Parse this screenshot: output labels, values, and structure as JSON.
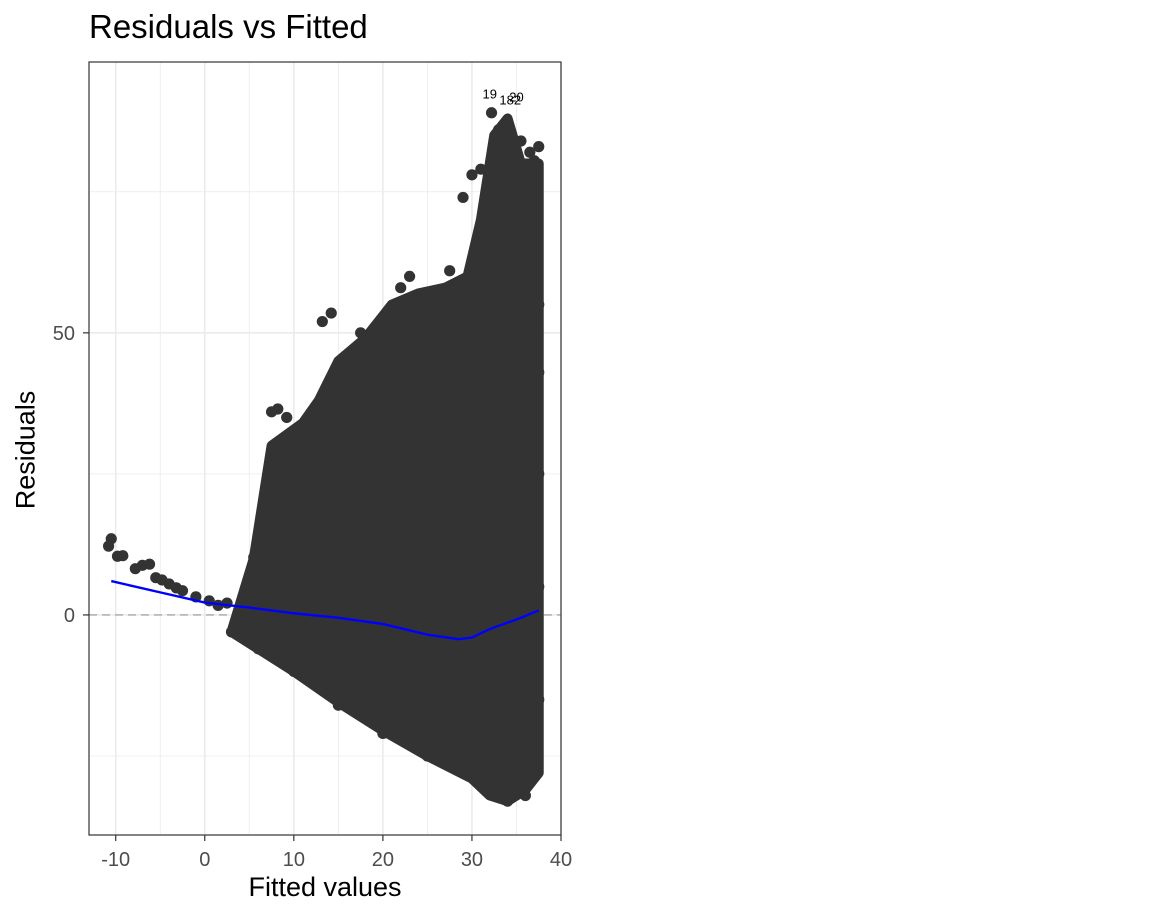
{
  "chart_data": {
    "type": "scatter",
    "title": "Residuals vs Fitted",
    "xlabel": "Fitted values",
    "ylabel": "Residuals",
    "xlim": [
      -13,
      40
    ],
    "ylim": [
      -39,
      98
    ],
    "x_ticks": [
      -10,
      0,
      10,
      20,
      30,
      40
    ],
    "x_tick_labels": [
      "-10",
      "0",
      "10",
      "20",
      "30",
      "40"
    ],
    "y_ticks": [
      0,
      50
    ],
    "y_tick_labels": [
      "0",
      "50"
    ],
    "grid": true,
    "reference_line": {
      "y": 0,
      "style": "dashed"
    },
    "colors": {
      "points": "#333333",
      "smooth": "#0000ff",
      "grid": "#ebebeb",
      "reference": "#999999"
    },
    "points_note": "dense cloud: residuals fan out from a narrow band at low fitted values to about -33..+92 near fitted 33-37",
    "sample_points": [
      {
        "x": -10.5,
        "y": 13.5
      },
      {
        "x": -10.8,
        "y": 12.2
      },
      {
        "x": -9.8,
        "y": 10.4
      },
      {
        "x": -9.2,
        "y": 10.5
      },
      {
        "x": -7.8,
        "y": 8.2
      },
      {
        "x": -7.0,
        "y": 8.8
      },
      {
        "x": -6.2,
        "y": 9.0
      },
      {
        "x": -5.5,
        "y": 6.6
      },
      {
        "x": -4.8,
        "y": 6.2
      },
      {
        "x": -4.0,
        "y": 5.5
      },
      {
        "x": -3.2,
        "y": 4.8
      },
      {
        "x": -2.5,
        "y": 4.3
      },
      {
        "x": -1.0,
        "y": 3.2
      },
      {
        "x": 0.5,
        "y": 2.5
      },
      {
        "x": 1.5,
        "y": 1.7
      },
      {
        "x": 2.5,
        "y": 2.1
      },
      {
        "x": 5.5,
        "y": 10.2
      },
      {
        "x": 7.0,
        "y": 9.5
      },
      {
        "x": 7.5,
        "y": 36.0
      },
      {
        "x": 8.2,
        "y": 36.5
      },
      {
        "x": 9.2,
        "y": 35.0
      },
      {
        "x": 10.5,
        "y": 20.3
      },
      {
        "x": 13.2,
        "y": 52.0
      },
      {
        "x": 14.2,
        "y": 53.5
      },
      {
        "x": 17.5,
        "y": 50.0
      },
      {
        "x": 22.0,
        "y": 58.0
      },
      {
        "x": 23.0,
        "y": 60.0
      },
      {
        "x": 27.5,
        "y": 61.0
      },
      {
        "x": 29.0,
        "y": 74.0
      },
      {
        "x": 30.0,
        "y": 78.0
      },
      {
        "x": 31.0,
        "y": 79.0
      },
      {
        "x": 32.2,
        "y": 89.0
      },
      {
        "x": 33.0,
        "y": 86.0
      },
      {
        "x": 33.5,
        "y": 81.0
      },
      {
        "x": 34.5,
        "y": 83.0
      },
      {
        "x": 35.5,
        "y": 84.0
      },
      {
        "x": 36.5,
        "y": 82.0
      },
      {
        "x": 37.0,
        "y": 80.5
      },
      {
        "x": 37.5,
        "y": 83.0
      },
      {
        "x": 36.0,
        "y": 70.0
      },
      {
        "x": 37.0,
        "y": 70.0
      },
      {
        "x": 36.5,
        "y": 62.0
      },
      {
        "x": 37.5,
        "y": 55.0
      },
      {
        "x": 37.5,
        "y": 43.0
      },
      {
        "x": 37.5,
        "y": 25.0
      },
      {
        "x": 37.5,
        "y": 5.0
      },
      {
        "x": 37.5,
        "y": -15.0
      },
      {
        "x": 37.0,
        "y": -28.0
      },
      {
        "x": 36.0,
        "y": -32.0
      },
      {
        "x": 34.0,
        "y": -33.0
      },
      {
        "x": 33.0,
        "y": -31.0
      },
      {
        "x": 30.0,
        "y": -28.0
      },
      {
        "x": 25.0,
        "y": -25.0
      },
      {
        "x": 20.0,
        "y": -21.0
      },
      {
        "x": 15.0,
        "y": -16.0
      },
      {
        "x": 10.0,
        "y": -10.0
      },
      {
        "x": 6.0,
        "y": -6.0
      },
      {
        "x": 3.0,
        "y": -3.0
      }
    ],
    "cloud_upper": [
      {
        "x": 5.5,
        "y": 10
      },
      {
        "x": 7.5,
        "y": 30
      },
      {
        "x": 11,
        "y": 34
      },
      {
        "x": 12.8,
        "y": 38
      },
      {
        "x": 15,
        "y": 45
      },
      {
        "x": 18,
        "y": 49
      },
      {
        "x": 21,
        "y": 55
      },
      {
        "x": 24,
        "y": 57
      },
      {
        "x": 27,
        "y": 58
      },
      {
        "x": 29.5,
        "y": 60
      },
      {
        "x": 31,
        "y": 70
      },
      {
        "x": 32.5,
        "y": 85
      },
      {
        "x": 34,
        "y": 88
      },
      {
        "x": 35.5,
        "y": 80
      },
      {
        "x": 37.5,
        "y": 80
      }
    ],
    "cloud_lower": [
      {
        "x": 37.5,
        "y": -28
      },
      {
        "x": 36,
        "y": -31
      },
      {
        "x": 34,
        "y": -33
      },
      {
        "x": 32,
        "y": -32
      },
      {
        "x": 30,
        "y": -29
      },
      {
        "x": 25,
        "y": -25
      },
      {
        "x": 20,
        "y": -20.5
      },
      {
        "x": 15,
        "y": -15.5
      },
      {
        "x": 10,
        "y": -10
      },
      {
        "x": 6,
        "y": -6
      },
      {
        "x": 3,
        "y": -3
      }
    ],
    "smooth_line": [
      {
        "x": -10.5,
        "y": 6.0
      },
      {
        "x": -5,
        "y": 4.0
      },
      {
        "x": 0,
        "y": 2.2
      },
      {
        "x": 5,
        "y": 1.3
      },
      {
        "x": 10,
        "y": 0.3
      },
      {
        "x": 15,
        "y": -0.5
      },
      {
        "x": 20,
        "y": -1.6
      },
      {
        "x": 25,
        "y": -3.5
      },
      {
        "x": 28.5,
        "y": -4.3
      },
      {
        "x": 30,
        "y": -4.0
      },
      {
        "x": 32,
        "y": -2.5
      },
      {
        "x": 35,
        "y": -0.8
      },
      {
        "x": 37.5,
        "y": 0.8
      }
    ],
    "point_labels": [
      {
        "text": "19",
        "x": 32.0,
        "y": 91.5
      },
      {
        "text": "182",
        "x": 34.3,
        "y": 90.5
      },
      {
        "text": "20",
        "x": 35.0,
        "y": 91.0
      }
    ]
  }
}
